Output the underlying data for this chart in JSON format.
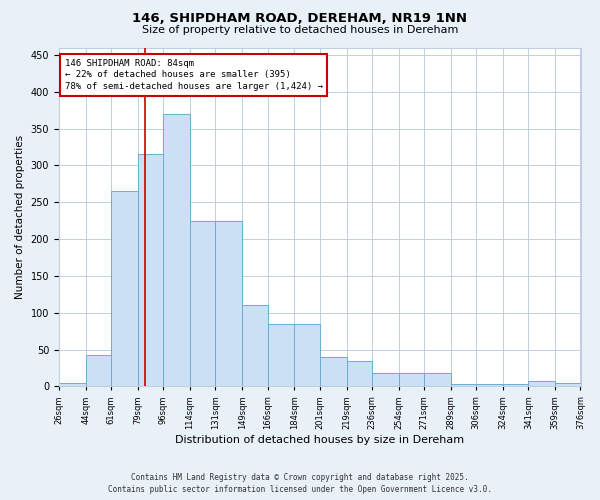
{
  "title": "146, SHIPDHAM ROAD, DEREHAM, NR19 1NN",
  "subtitle": "Size of property relative to detached houses in Dereham",
  "xlabel": "Distribution of detached houses by size in Dereham",
  "ylabel": "Number of detached properties",
  "footer_line1": "Contains HM Land Registry data © Crown copyright and database right 2025.",
  "footer_line2": "Contains public sector information licensed under the Open Government Licence v3.0.",
  "bar_edges": [
    26,
    44,
    61,
    79,
    96,
    114,
    131,
    149,
    166,
    184,
    201,
    219,
    236,
    254,
    271,
    289,
    306,
    324,
    341,
    359,
    376
  ],
  "bar_heights": [
    5,
    42,
    265,
    315,
    370,
    225,
    225,
    110,
    85,
    85,
    40,
    35,
    18,
    18,
    18,
    3,
    3,
    3,
    8,
    5
  ],
  "bar_color": "#cce0f5",
  "bar_edge_color": "#6aadd5",
  "red_line_x": 84,
  "red_line_color": "#cc0000",
  "annotation_text": "146 SHIPDHAM ROAD: 84sqm\n← 22% of detached houses are smaller (395)\n78% of semi-detached houses are larger (1,424) →",
  "annotation_box_color": "#cc0000",
  "annotation_bg": "#ffffff",
  "ylim": [
    0,
    460
  ],
  "yticks": [
    0,
    50,
    100,
    150,
    200,
    250,
    300,
    350,
    400,
    450
  ],
  "bg_color": "#e8f0f8",
  "plot_bg_color": "#ffffff",
  "grid_color": "#c0d0e0"
}
